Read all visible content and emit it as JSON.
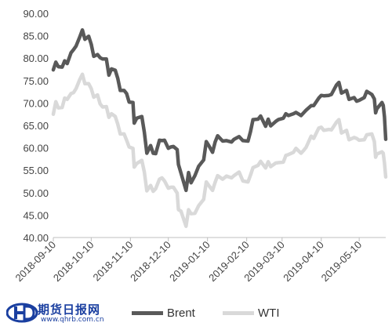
{
  "chart_data": {
    "type": "line",
    "title": "",
    "xlabel": "",
    "ylabel": "",
    "ylim": [
      40,
      90
    ],
    "y_ticks": [
      "40.00",
      "45.00",
      "50.00",
      "55.00",
      "60.00",
      "65.00",
      "70.00",
      "75.00",
      "80.00",
      "85.00",
      "90.00"
    ],
    "x_ticks": [
      "2018-09-10",
      "2018-10-10",
      "2018-11-10",
      "2018-12-10",
      "2019-01-10",
      "2019-02-10",
      "2019-03-10",
      "2019-04-10",
      "2019-05-10"
    ],
    "x_range": [
      "2018-09-10",
      "2019-05-31"
    ],
    "grid": false,
    "legend_position": "bottom",
    "series": [
      {
        "name": "Brent",
        "color": "#595959",
        "points": [
          [
            "2018-09-10",
            77.4
          ],
          [
            "2018-09-12",
            79.1
          ],
          [
            "2018-09-14",
            78.1
          ],
          [
            "2018-09-17",
            78.0
          ],
          [
            "2018-09-19",
            79.4
          ],
          [
            "2018-09-21",
            78.8
          ],
          [
            "2018-09-24",
            81.2
          ],
          [
            "2018-09-26",
            81.9
          ],
          [
            "2018-09-28",
            82.7
          ],
          [
            "2018-10-01",
            84.8
          ],
          [
            "2018-10-03",
            86.3
          ],
          [
            "2018-10-05",
            84.2
          ],
          [
            "2018-10-08",
            84.9
          ],
          [
            "2018-10-10",
            83.1
          ],
          [
            "2018-10-12",
            80.4
          ],
          [
            "2018-10-15",
            80.8
          ],
          [
            "2018-10-17",
            80.1
          ],
          [
            "2018-10-19",
            79.8
          ],
          [
            "2018-10-22",
            79.8
          ],
          [
            "2018-10-24",
            76.2
          ],
          [
            "2018-10-26",
            77.6
          ],
          [
            "2018-10-29",
            77.3
          ],
          [
            "2018-10-31",
            75.5
          ],
          [
            "2018-11-02",
            72.8
          ],
          [
            "2018-11-05",
            72.8
          ],
          [
            "2018-11-07",
            72.1
          ],
          [
            "2018-11-09",
            70.2
          ],
          [
            "2018-11-12",
            70.1
          ],
          [
            "2018-11-13",
            65.5
          ],
          [
            "2018-11-15",
            66.6
          ],
          [
            "2018-11-19",
            67.0
          ],
          [
            "2018-11-21",
            63.5
          ],
          [
            "2018-11-23",
            58.8
          ],
          [
            "2018-11-26",
            60.5
          ],
          [
            "2018-11-28",
            58.8
          ],
          [
            "2018-11-30",
            58.7
          ],
          [
            "2018-12-03",
            61.7
          ],
          [
            "2018-12-05",
            61.6
          ],
          [
            "2018-12-07",
            61.7
          ],
          [
            "2018-12-10",
            59.9
          ],
          [
            "2018-12-12",
            60.2
          ],
          [
            "2018-12-14",
            60.3
          ],
          [
            "2018-12-17",
            59.6
          ],
          [
            "2018-12-18",
            56.3
          ],
          [
            "2018-12-20",
            54.4
          ],
          [
            "2018-12-24",
            50.5
          ],
          [
            "2018-12-26",
            54.5
          ],
          [
            "2018-12-28",
            52.2
          ],
          [
            "2018-12-31",
            53.8
          ],
          [
            "2019-01-03",
            55.9
          ],
          [
            "2019-01-07",
            57.3
          ],
          [
            "2019-01-09",
            61.4
          ],
          [
            "2019-01-11",
            60.5
          ],
          [
            "2019-01-14",
            59.0
          ],
          [
            "2019-01-16",
            61.3
          ],
          [
            "2019-01-18",
            62.7
          ],
          [
            "2019-01-22",
            61.5
          ],
          [
            "2019-01-25",
            61.6
          ],
          [
            "2019-01-29",
            61.3
          ],
          [
            "2019-01-31",
            61.9
          ],
          [
            "2019-02-04",
            62.5
          ],
          [
            "2019-02-07",
            61.6
          ],
          [
            "2019-02-11",
            61.5
          ],
          [
            "2019-02-13",
            63.6
          ],
          [
            "2019-02-15",
            66.3
          ],
          [
            "2019-02-19",
            66.4
          ],
          [
            "2019-02-21",
            67.1
          ],
          [
            "2019-02-25",
            64.8
          ],
          [
            "2019-02-27",
            66.4
          ],
          [
            "2019-03-01",
            64.9
          ],
          [
            "2019-03-05",
            65.9
          ],
          [
            "2019-03-07",
            66.3
          ],
          [
            "2019-03-11",
            66.6
          ],
          [
            "2019-03-13",
            67.6
          ],
          [
            "2019-03-15",
            67.2
          ],
          [
            "2019-03-19",
            67.6
          ],
          [
            "2019-03-21",
            67.9
          ],
          [
            "2019-03-25",
            67.2
          ],
          [
            "2019-03-27",
            67.8
          ],
          [
            "2019-03-29",
            68.4
          ],
          [
            "2019-04-02",
            69.4
          ],
          [
            "2019-04-04",
            69.4
          ],
          [
            "2019-04-08",
            71.1
          ],
          [
            "2019-04-10",
            71.7
          ],
          [
            "2019-04-12",
            71.6
          ],
          [
            "2019-04-16",
            71.7
          ],
          [
            "2019-04-18",
            71.9
          ],
          [
            "2019-04-22",
            74.0
          ],
          [
            "2019-04-24",
            74.6
          ],
          [
            "2019-04-26",
            72.2
          ],
          [
            "2019-04-30",
            72.8
          ],
          [
            "2019-05-02",
            70.8
          ],
          [
            "2019-05-06",
            71.2
          ],
          [
            "2019-05-08",
            70.4
          ],
          [
            "2019-05-10",
            70.6
          ],
          [
            "2019-05-14",
            71.2
          ],
          [
            "2019-05-16",
            72.6
          ],
          [
            "2019-05-20",
            71.9
          ],
          [
            "2019-05-22",
            70.9
          ],
          [
            "2019-05-23",
            67.8
          ],
          [
            "2019-05-24",
            68.7
          ],
          [
            "2019-05-28",
            70.1
          ],
          [
            "2019-05-29",
            69.5
          ],
          [
            "2019-05-30",
            66.9
          ],
          [
            "2019-05-31",
            61.9
          ]
        ]
      },
      {
        "name": "WTI",
        "color": "#d9d9d9",
        "points": [
          [
            "2018-09-10",
            67.5
          ],
          [
            "2018-09-12",
            70.3
          ],
          [
            "2018-09-14",
            68.9
          ],
          [
            "2018-09-17",
            69.0
          ],
          [
            "2018-09-19",
            71.1
          ],
          [
            "2018-09-21",
            70.8
          ],
          [
            "2018-09-24",
            72.1
          ],
          [
            "2018-09-26",
            72.3
          ],
          [
            "2018-09-28",
            73.2
          ],
          [
            "2018-10-01",
            75.3
          ],
          [
            "2018-10-03",
            76.4
          ],
          [
            "2018-10-05",
            74.3
          ],
          [
            "2018-10-08",
            74.3
          ],
          [
            "2018-10-10",
            73.2
          ],
          [
            "2018-10-12",
            71.3
          ],
          [
            "2018-10-15",
            71.8
          ],
          [
            "2018-10-17",
            69.8
          ],
          [
            "2018-10-19",
            69.1
          ],
          [
            "2018-10-22",
            69.2
          ],
          [
            "2018-10-24",
            66.8
          ],
          [
            "2018-10-26",
            67.6
          ],
          [
            "2018-10-29",
            67.0
          ],
          [
            "2018-10-31",
            65.3
          ],
          [
            "2018-11-02",
            63.1
          ],
          [
            "2018-11-05",
            63.1
          ],
          [
            "2018-11-07",
            61.7
          ],
          [
            "2018-11-09",
            60.2
          ],
          [
            "2018-11-12",
            59.9
          ],
          [
            "2018-11-13",
            55.7
          ],
          [
            "2018-11-15",
            56.5
          ],
          [
            "2018-11-19",
            57.2
          ],
          [
            "2018-11-21",
            54.6
          ],
          [
            "2018-11-23",
            50.4
          ],
          [
            "2018-11-26",
            51.6
          ],
          [
            "2018-11-28",
            50.3
          ],
          [
            "2018-11-30",
            50.9
          ],
          [
            "2018-12-03",
            53.0
          ],
          [
            "2018-12-05",
            53.3
          ],
          [
            "2018-12-07",
            52.6
          ],
          [
            "2018-12-10",
            51.0
          ],
          [
            "2018-12-12",
            51.2
          ],
          [
            "2018-12-14",
            51.2
          ],
          [
            "2018-12-17",
            49.9
          ],
          [
            "2018-12-18",
            46.2
          ],
          [
            "2018-12-20",
            45.9
          ],
          [
            "2018-12-24",
            42.5
          ],
          [
            "2018-12-26",
            46.2
          ],
          [
            "2018-12-28",
            45.3
          ],
          [
            "2018-12-31",
            45.4
          ],
          [
            "2019-01-03",
            47.1
          ],
          [
            "2019-01-07",
            48.5
          ],
          [
            "2019-01-09",
            52.4
          ],
          [
            "2019-01-11",
            51.6
          ],
          [
            "2019-01-14",
            50.5
          ],
          [
            "2019-01-16",
            52.3
          ],
          [
            "2019-01-18",
            53.8
          ],
          [
            "2019-01-22",
            53.0
          ],
          [
            "2019-01-25",
            53.7
          ],
          [
            "2019-01-29",
            53.3
          ],
          [
            "2019-01-31",
            53.8
          ],
          [
            "2019-02-04",
            54.6
          ],
          [
            "2019-02-07",
            52.6
          ],
          [
            "2019-02-11",
            52.4
          ],
          [
            "2019-02-13",
            53.9
          ],
          [
            "2019-02-15",
            55.6
          ],
          [
            "2019-02-19",
            56.1
          ],
          [
            "2019-02-21",
            57.0
          ],
          [
            "2019-02-25",
            55.5
          ],
          [
            "2019-02-27",
            56.9
          ],
          [
            "2019-03-01",
            55.8
          ],
          [
            "2019-03-05",
            56.6
          ],
          [
            "2019-03-07",
            56.7
          ],
          [
            "2019-03-11",
            56.8
          ],
          [
            "2019-03-13",
            58.3
          ],
          [
            "2019-03-15",
            58.5
          ],
          [
            "2019-03-19",
            59.0
          ],
          [
            "2019-03-21",
            59.9
          ],
          [
            "2019-03-25",
            58.8
          ],
          [
            "2019-03-27",
            59.4
          ],
          [
            "2019-03-29",
            60.1
          ],
          [
            "2019-04-02",
            62.6
          ],
          [
            "2019-04-04",
            62.1
          ],
          [
            "2019-04-08",
            64.4
          ],
          [
            "2019-04-10",
            64.6
          ],
          [
            "2019-04-12",
            63.9
          ],
          [
            "2019-04-16",
            64.1
          ],
          [
            "2019-04-18",
            64.0
          ],
          [
            "2019-04-22",
            65.7
          ],
          [
            "2019-04-24",
            66.3
          ],
          [
            "2019-04-26",
            63.3
          ],
          [
            "2019-04-30",
            63.9
          ],
          [
            "2019-05-02",
            61.8
          ],
          [
            "2019-05-06",
            62.3
          ],
          [
            "2019-05-08",
            62.1
          ],
          [
            "2019-05-10",
            61.7
          ],
          [
            "2019-05-14",
            61.8
          ],
          [
            "2019-05-16",
            62.9
          ],
          [
            "2019-05-20",
            63.1
          ],
          [
            "2019-05-22",
            61.4
          ],
          [
            "2019-05-23",
            57.9
          ],
          [
            "2019-05-24",
            58.6
          ],
          [
            "2019-05-28",
            59.1
          ],
          [
            "2019-05-29",
            58.8
          ],
          [
            "2019-05-30",
            56.6
          ],
          [
            "2019-05-31",
            53.5
          ]
        ]
      }
    ]
  },
  "logo": {
    "text": "期货日报网",
    "url": "www.qhrb.com.cn"
  }
}
